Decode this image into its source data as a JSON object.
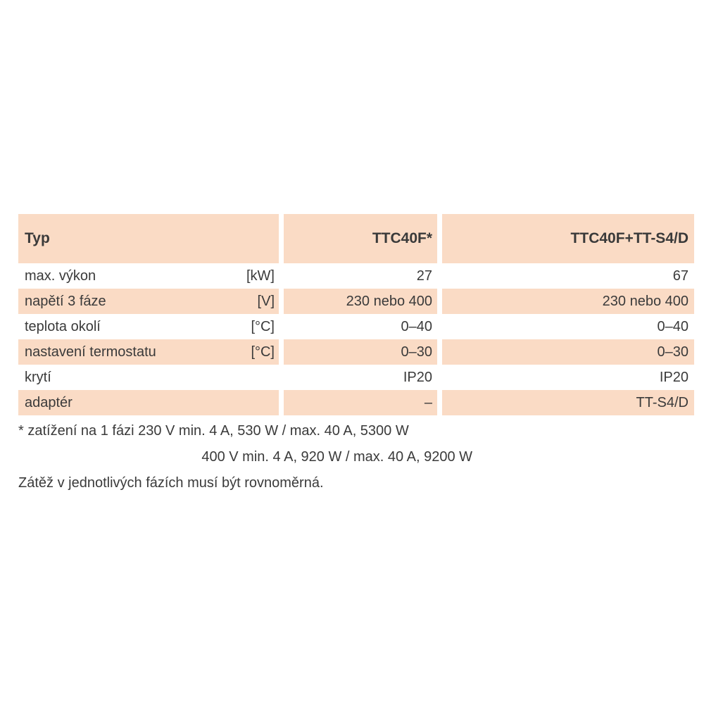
{
  "colors": {
    "row_fill": "#fadbc5",
    "text": "#3a3a3a",
    "background": "#ffffff"
  },
  "table": {
    "header": {
      "type_label": "Typ",
      "model1": "TTC40F*",
      "model2": "TTC40F+TT-S4/D"
    },
    "rows": [
      {
        "label": "max. výkon",
        "unit": "[kW]",
        "v1": "27",
        "v2": "67"
      },
      {
        "label": "napětí 3 fáze",
        "unit": "[V]",
        "v1": "230 nebo 400",
        "v2": "230 nebo 400"
      },
      {
        "label": "teplota okolí",
        "unit": "[°C]",
        "v1": "0–40",
        "v2": "0–40"
      },
      {
        "label": "nastavení termostatu",
        "unit": "[°C]",
        "v1": "0–30",
        "v2": "0–30"
      },
      {
        "label": "krytí",
        "unit": "",
        "v1": "IP20",
        "v2": "IP20"
      },
      {
        "label": "adaptér",
        "unit": "",
        "v1": "–",
        "v2": "TT-S4/D"
      }
    ]
  },
  "footnotes": {
    "line1": "* zatížení na 1 fázi 230 V min. 4 A, 530 W / max. 40 A, 5300 W",
    "line2": "400 V min. 4 A, 920 W / max. 40 A, 9200 W",
    "line3": "Zátěž v jednotlivých fázích musí být rovnoměrná."
  }
}
